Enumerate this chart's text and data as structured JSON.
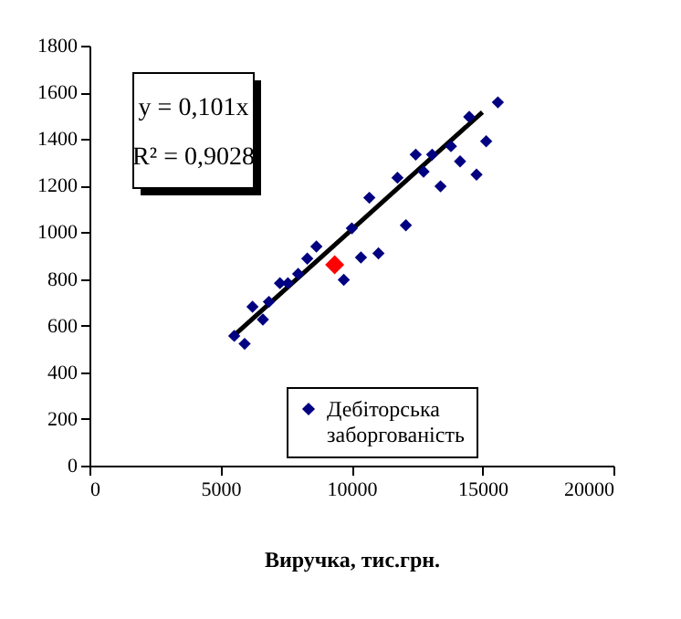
{
  "chart_data": {
    "type": "scatter",
    "xlabel": "Виручка, тис.грн.",
    "xlim": [
      0,
      20000
    ],
    "xticks": [
      0,
      5000,
      10000,
      15000,
      20000
    ],
    "ylim": [
      0,
      1800
    ],
    "yticks": [
      0,
      200,
      400,
      600,
      800,
      1000,
      1200,
      1400,
      1600,
      1800
    ],
    "grid": false,
    "legend": "bottom right",
    "annotations": [
      "y = 0,101x",
      "R² = 0,9028"
    ],
    "series": [
      {
        "name": "Дебіторська заборгованість",
        "marker": "diamond",
        "color": "#000080",
        "x": [
          5526,
          5923,
          6223,
          6620,
          6850,
          7270,
          7575,
          7965,
          8314,
          8662,
          9707,
          10014,
          10362,
          11031,
          10683,
          12077,
          11756,
          12453,
          12753,
          13080,
          13400,
          13798,
          14146,
          14774,
          14495,
          15143,
          15589
        ],
        "values": [
          556,
          522,
          681,
          626,
          702,
          782,
          782,
          822,
          887,
          939,
          796,
          1017,
          892,
          910,
          1148,
          1030,
          1234,
          1333,
          1260,
          1333,
          1197,
          1369,
          1304,
          1247,
          1495,
          1390,
          1557
        ]
      },
      {
        "marker": "diamond",
        "color": "#ff0000",
        "x": [
          9359
        ],
        "values": [
          861
        ]
      },
      {
        "type": "line",
        "marker": "none",
        "color": "#000000",
        "x": [
          5500,
          15000
        ],
        "values": [
          556,
          1515
        ]
      }
    ]
  }
}
